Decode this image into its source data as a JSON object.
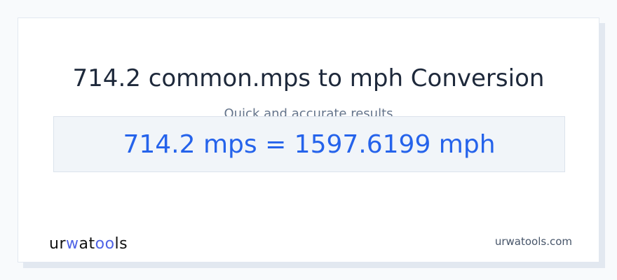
{
  "title": "714.2 common.mps to mph Conversion",
  "subtitle": "Quick and accurate results",
  "result": "714.2 mps = 1597.6199 mph",
  "logo": {
    "parts": [
      "ur",
      "w",
      "a",
      "t",
      "oo",
      "ls"
    ],
    "accent_color": "#4f63e6"
  },
  "site": "urwatools.com"
}
